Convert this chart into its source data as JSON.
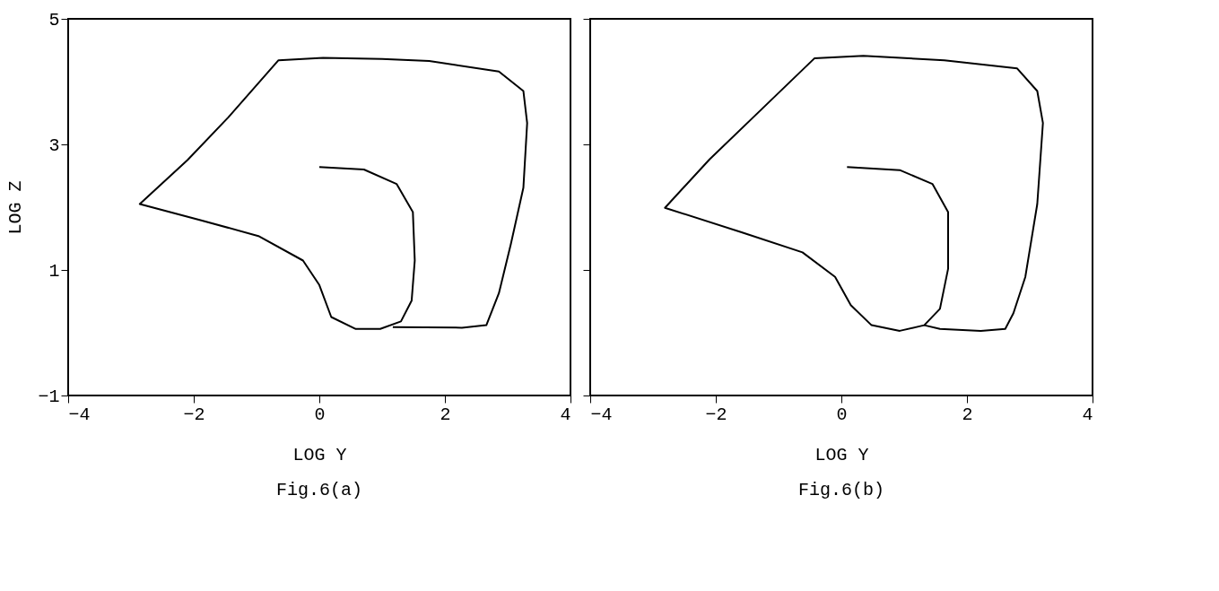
{
  "chart_data": [
    {
      "type": "line",
      "xlabel": "LOG Y",
      "ylabel": "LOG Z",
      "annotations": [
        "Fig.6(a)"
      ],
      "xlim": [
        -4,
        4
      ],
      "ylim": [
        -1,
        5
      ],
      "xticks": [
        -4,
        -2,
        0,
        2,
        4
      ],
      "yticks": [
        -1,
        1,
        3,
        5
      ],
      "grid": false,
      "marker": "none",
      "line_style": "solid",
      "series": [
        {
          "color": "#000000",
          "x": [
            0,
            0.71,
            1.23,
            1.49,
            1.52,
            1.47,
            1.3,
            0.97,
            0.58,
            0.19,
            0,
            -0.26,
            -0.97,
            -1.88,
            -2.86,
            -2.1,
            -1.45,
            -0.65,
            0.06,
            1.0,
            1.75,
            2.86,
            3.25,
            3.31,
            3.25,
            3.05,
            2.86,
            2.66,
            2.27,
            1.17
          ],
          "values": [
            2.64,
            2.6,
            2.37,
            1.92,
            1.15,
            0.51,
            0.18,
            0.06,
            0.06,
            0.25,
            0.76,
            1.15,
            1.54,
            1.79,
            2.05,
            2.75,
            3.43,
            4.34,
            4.38,
            4.36,
            4.33,
            4.16,
            3.85,
            3.34,
            2.31,
            1.41,
            0.63,
            0.12,
            0.08,
            0.09
          ]
        }
      ]
    },
    {
      "type": "line",
      "xlabel": "LOG Y",
      "annotations": [
        "Fig.6(b)"
      ],
      "xlim": [
        -4,
        4
      ],
      "ylim": [
        -1,
        5
      ],
      "xticks": [
        -4,
        -2,
        0,
        2,
        4
      ],
      "yticks": [
        -1,
        1,
        3,
        5
      ],
      "grid": false,
      "marker": "none",
      "line_style": "solid",
      "tick_labels": "x",
      "series": [
        {
          "color": "#000000",
          "x": [
            0.09,
            0.93,
            1.45,
            1.7,
            1.7,
            1.57,
            1.32,
            0.93,
            0.48,
            0.15,
            -0.1,
            -0.62,
            -1.59,
            -2.81,
            -2.1,
            -1.26,
            -0.43,
            0.35,
            1.64,
            2.8,
            3.12,
            3.21,
            3.12,
            2.93,
            2.74,
            2.61,
            2.22,
            1.57,
            1.32
          ],
          "values": [
            2.64,
            2.59,
            2.37,
            1.92,
            1.02,
            0.38,
            0.12,
            0.03,
            0.12,
            0.44,
            0.89,
            1.28,
            1.6,
            1.99,
            2.76,
            3.57,
            4.37,
            4.41,
            4.34,
            4.21,
            3.85,
            3.34,
            2.05,
            0.89,
            0.31,
            0.06,
            0.03,
            0.06,
            0.12
          ]
        }
      ]
    }
  ]
}
